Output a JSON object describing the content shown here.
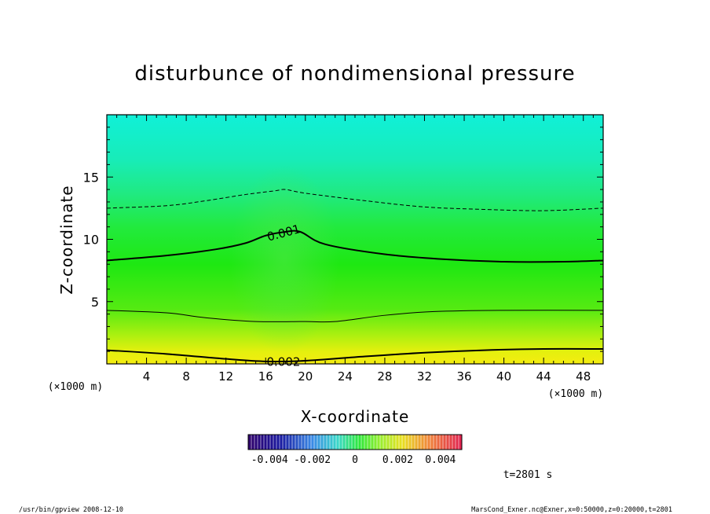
{
  "chart_data": {
    "type": "heatmap",
    "title": "disturbunce of nondimensional pressure",
    "xlabel": "X-coordinate",
    "ylabel": "Z-coordinate",
    "x_unit": "(×1000 m)",
    "y_unit": "(×1000 m)",
    "xlim": [
      0,
      50
    ],
    "ylim": [
      0,
      20
    ],
    "x_ticks": [
      4,
      8,
      12,
      16,
      20,
      24,
      28,
      32,
      36,
      40,
      44,
      48
    ],
    "y_ticks": [
      5,
      10,
      15
    ],
    "contours": [
      {
        "label": "0.002",
        "style": "thick",
        "points": [
          [
            0,
            1.1
          ],
          [
            6,
            0.8
          ],
          [
            12,
            0.4
          ],
          [
            16,
            0.2
          ],
          [
            20,
            0.25
          ],
          [
            26,
            0.6
          ],
          [
            32,
            0.9
          ],
          [
            38,
            1.1
          ],
          [
            44,
            1.2
          ],
          [
            50,
            1.2
          ]
        ]
      },
      {
        "label": "",
        "style": "thin",
        "points": [
          [
            0,
            4.3
          ],
          [
            6,
            4.1
          ],
          [
            10,
            3.7
          ],
          [
            15,
            3.4
          ],
          [
            20,
            3.4
          ],
          [
            23,
            3.4
          ],
          [
            28,
            3.9
          ],
          [
            33,
            4.2
          ],
          [
            40,
            4.3
          ],
          [
            50,
            4.3
          ]
        ]
      },
      {
        "label": "0.001",
        "style": "thick",
        "points": [
          [
            0,
            8.3
          ],
          [
            6,
            8.7
          ],
          [
            11,
            9.2
          ],
          [
            14,
            9.7
          ],
          [
            16,
            10.3
          ],
          [
            18,
            10.6
          ],
          [
            19.5,
            10.6
          ],
          [
            22,
            9.6
          ],
          [
            28,
            8.8
          ],
          [
            34,
            8.4
          ],
          [
            40,
            8.2
          ],
          [
            46,
            8.2
          ],
          [
            50,
            8.3
          ]
        ]
      },
      {
        "label": "",
        "style": "dashed",
        "points": [
          [
            0,
            12.5
          ],
          [
            6,
            12.7
          ],
          [
            10,
            13.1
          ],
          [
            14,
            13.6
          ],
          [
            17,
            13.9
          ],
          [
            18,
            14.0
          ],
          [
            20,
            13.7
          ],
          [
            26,
            13.1
          ],
          [
            32,
            12.6
          ],
          [
            38,
            12.4
          ],
          [
            44,
            12.3
          ],
          [
            50,
            12.5
          ]
        ]
      }
    ],
    "colorbar": {
      "ticks": [
        "-0.004",
        "-0.002",
        "0",
        "0.002",
        "0.004"
      ],
      "range": [
        -0.005,
        0.005
      ]
    },
    "time_label": "t=2801 s",
    "footer_left": "/usr/bin/gpview   2008-12-10",
    "footer_right": "MarsCond_Exner.nc@Exner,x=0:50000,z=0:20000,t=2801"
  }
}
